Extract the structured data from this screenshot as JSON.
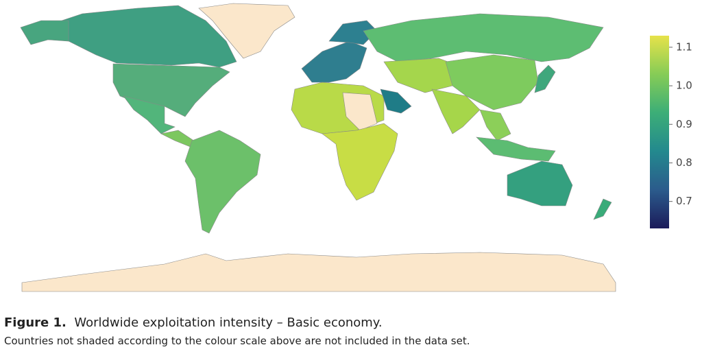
{
  "figure": {
    "label": "Figure 1.",
    "title": "Worldwide exploitation intensity – Basic economy.",
    "note": "Countries not shaded according to the colour scale above are not included in the data set."
  },
  "colorbar": {
    "range": [
      0.63,
      1.13
    ],
    "ticks": [
      0.7,
      0.8,
      0.9,
      {
        "value": 1,
        "label": "1.0"
      },
      1.1
    ],
    "colors": [
      "#1b1b5a",
      "#2b5b8c",
      "#23898e",
      "#3cae77",
      "#86cc56",
      "#e6e24a"
    ]
  }
}
